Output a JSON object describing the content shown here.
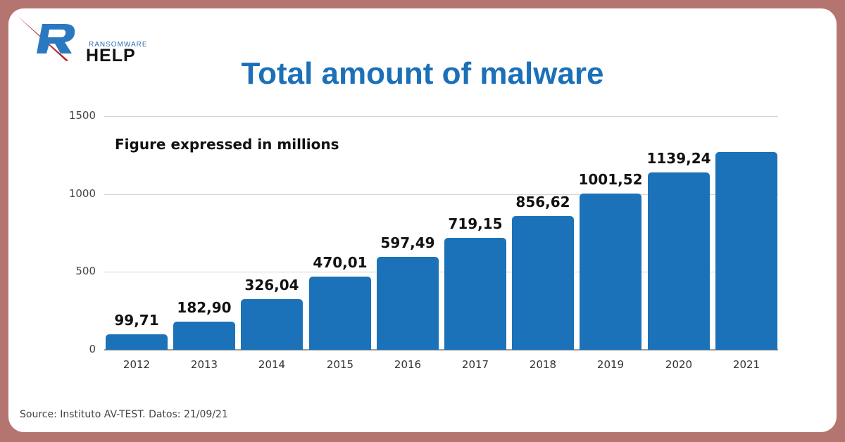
{
  "brand": {
    "small": "RANSOMWARE",
    "big": "HELP"
  },
  "title": "Total amount of malware",
  "subtitle": "Figure expressed in millions",
  "source": "Source: Instituto AV-TEST. Datos: 21/09/21",
  "colors": {
    "bar": "#1c72b8",
    "title": "#1c70b8",
    "frame": "#b47470"
  },
  "chart_data": {
    "type": "bar",
    "title": "Total amount of malware",
    "subtitle": "Figure expressed in millions",
    "xlabel": "",
    "ylabel": "",
    "categories": [
      "2012",
      "2013",
      "2014",
      "2015",
      "2016",
      "2017",
      "2018",
      "2019",
      "2020",
      "2021"
    ],
    "values": [
      99.71,
      182.9,
      326.04,
      470.01,
      597.49,
      719.15,
      856.62,
      1001.52,
      1139.24,
      1270
    ],
    "labels": [
      "99,71",
      "182,90",
      "326,04",
      "470,01",
      "597,49",
      "719,15",
      "856,62",
      "1001,52",
      "1139,24",
      ""
    ],
    "yticks": [
      "0",
      "500",
      "1000",
      "1500"
    ],
    "ylim": [
      0,
      1500
    ],
    "grid": true,
    "legend": null
  }
}
